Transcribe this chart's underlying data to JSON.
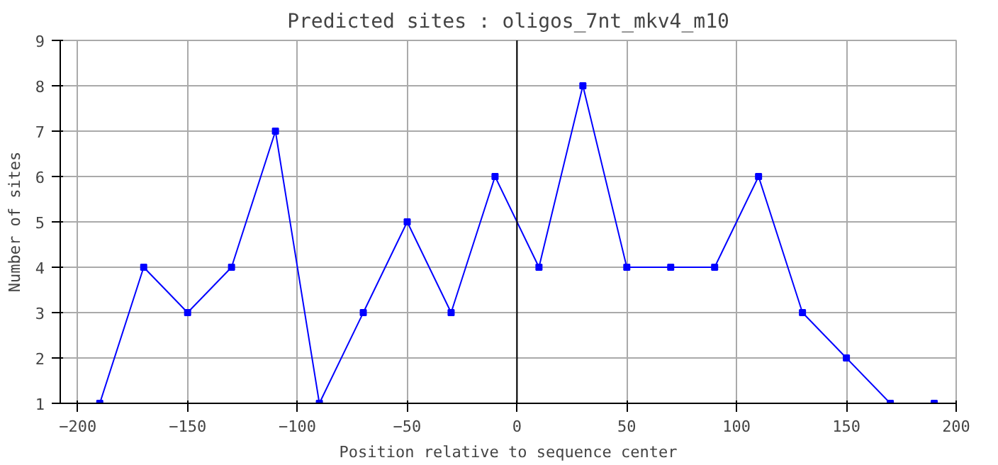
{
  "chart_data": {
    "type": "line",
    "title": "Predicted sites : oligos_7nt_mkv4_m10",
    "xlabel": "Position relative to sequence center",
    "ylabel": "Number of sites",
    "x": [
      -190,
      -170,
      -150,
      -130,
      -110,
      -90,
      -70,
      -50,
      -30,
      -10,
      10,
      30,
      50,
      70,
      90,
      110,
      130,
      150,
      170,
      190
    ],
    "series": [
      {
        "color": "#0000ff",
        "values": [
          1,
          4,
          3,
          4,
          7,
          1,
          3,
          5,
          3,
          6,
          4,
          8,
          4,
          4,
          4,
          6,
          3,
          2,
          1,
          1
        ]
      }
    ],
    "xlim": [
      -208,
      200
    ],
    "xticks": [
      -200,
      -150,
      -100,
      -50,
      0,
      50,
      100,
      150,
      200
    ],
    "ylim": [
      1,
      9
    ],
    "yticks": [
      1,
      2,
      3,
      4,
      5,
      6,
      7,
      8,
      9
    ],
    "ref_lines": [
      {
        "axis": "x",
        "value": 0,
        "color": "#000000"
      }
    ],
    "grid": true,
    "marker": "square",
    "line_style": "solid"
  }
}
